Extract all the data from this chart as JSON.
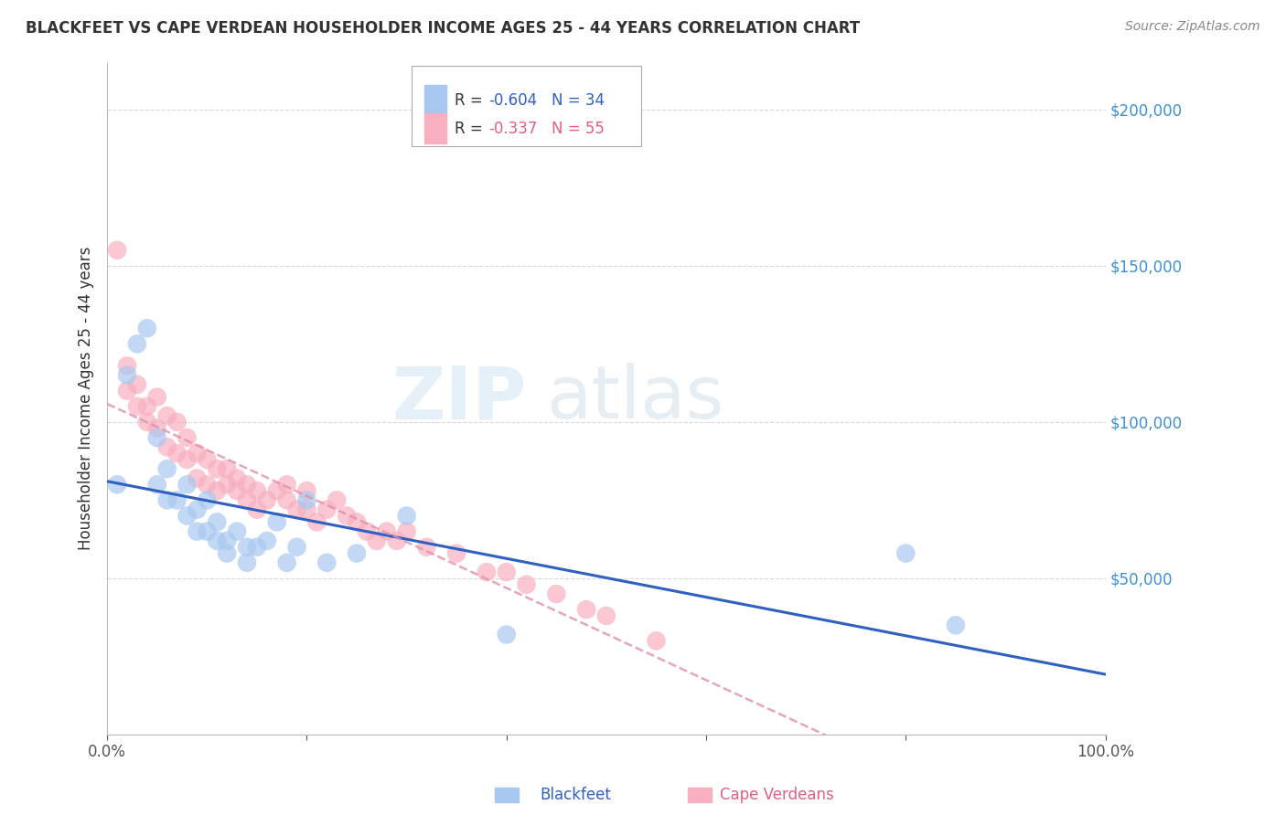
{
  "title": "BLACKFEET VS CAPE VERDEAN HOUSEHOLDER INCOME AGES 25 - 44 YEARS CORRELATION CHART",
  "source": "Source: ZipAtlas.com",
  "ylabel": "Householder Income Ages 25 - 44 years",
  "xlim": [
    0,
    100
  ],
  "ylim": [
    0,
    215000
  ],
  "yticks": [
    0,
    50000,
    100000,
    150000,
    200000
  ],
  "watermark_zip": "ZIP",
  "watermark_atlas": "atlas",
  "legend_bf_R": "-0.604",
  "legend_bf_N": "34",
  "legend_cv_R": "-0.337",
  "legend_cv_N": "55",
  "bf_color": "#a8c8f0",
  "cv_color": "#f8b0c0",
  "bf_line_color": "#3060c0",
  "cv_line_color": "#e090a8",
  "background_color": "#ffffff",
  "grid_color": "#d8d8d8",
  "text_color": "#333333",
  "blue_label_color": "#4090d0",
  "blackfeet_x": [
    1,
    2,
    3,
    4,
    5,
    5,
    6,
    6,
    7,
    8,
    8,
    9,
    9,
    10,
    10,
    11,
    11,
    12,
    12,
    13,
    14,
    14,
    15,
    16,
    17,
    18,
    19,
    20,
    22,
    25,
    30,
    40,
    80,
    85
  ],
  "blackfeet_y": [
    80000,
    115000,
    125000,
    130000,
    80000,
    95000,
    85000,
    75000,
    75000,
    80000,
    70000,
    72000,
    65000,
    75000,
    65000,
    68000,
    62000,
    62000,
    58000,
    65000,
    60000,
    55000,
    60000,
    62000,
    68000,
    55000,
    60000,
    75000,
    55000,
    58000,
    70000,
    32000,
    58000,
    35000
  ],
  "cape_verdean_x": [
    1,
    2,
    2,
    3,
    3,
    4,
    4,
    5,
    5,
    6,
    6,
    7,
    7,
    8,
    8,
    9,
    9,
    10,
    10,
    11,
    11,
    12,
    12,
    13,
    13,
    14,
    14,
    15,
    15,
    16,
    17,
    18,
    18,
    19,
    20,
    20,
    21,
    22,
    23,
    24,
    25,
    26,
    27,
    28,
    29,
    30,
    32,
    35,
    38,
    40,
    42,
    45,
    48,
    50,
    55
  ],
  "cape_verdean_y": [
    155000,
    118000,
    110000,
    112000,
    105000,
    105000,
    100000,
    108000,
    98000,
    102000,
    92000,
    100000,
    90000,
    95000,
    88000,
    90000,
    82000,
    88000,
    80000,
    85000,
    78000,
    85000,
    80000,
    82000,
    78000,
    80000,
    75000,
    78000,
    72000,
    75000,
    78000,
    80000,
    75000,
    72000,
    78000,
    72000,
    68000,
    72000,
    75000,
    70000,
    68000,
    65000,
    62000,
    65000,
    62000,
    65000,
    60000,
    58000,
    52000,
    52000,
    48000,
    45000,
    40000,
    38000,
    30000
  ]
}
